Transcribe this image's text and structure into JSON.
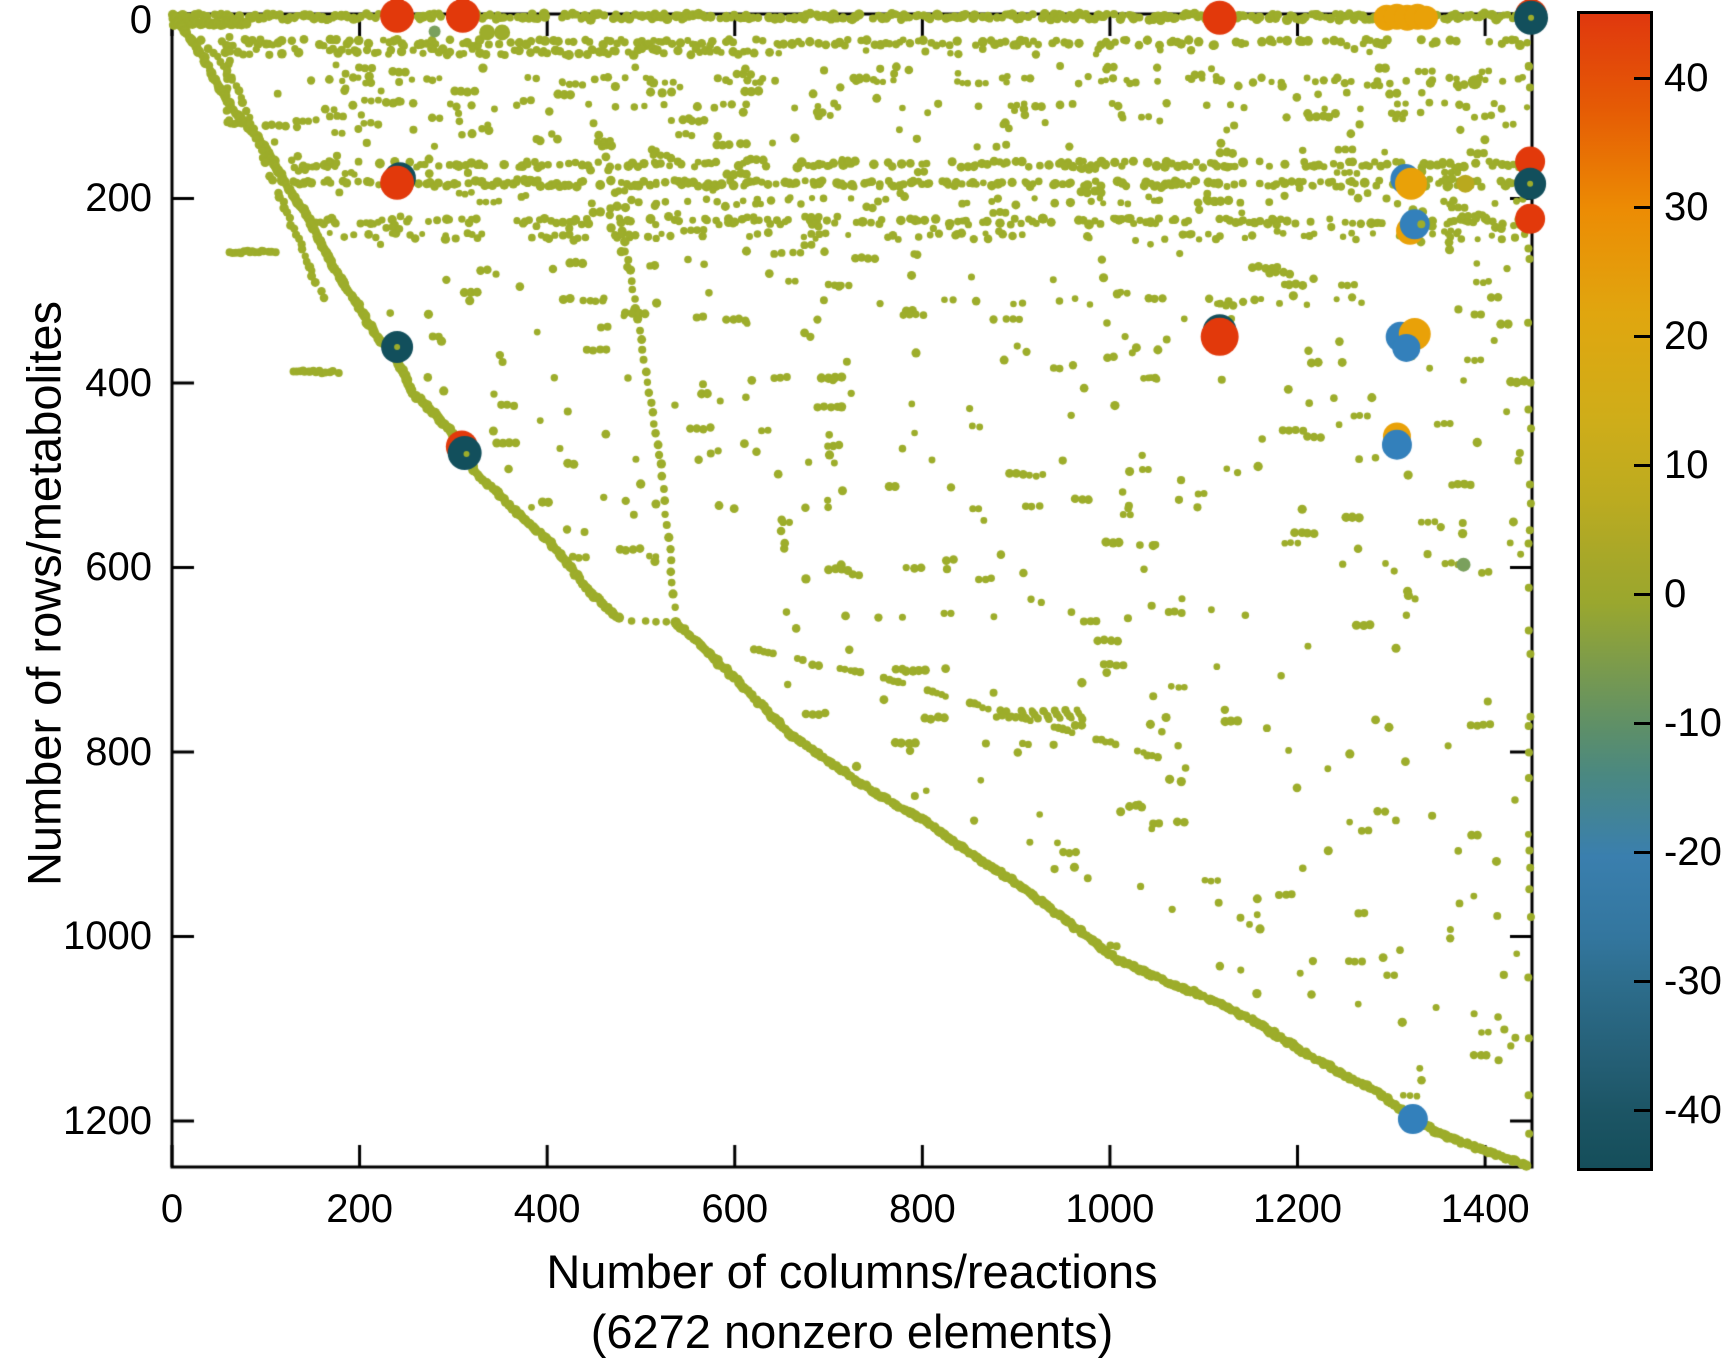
{
  "chart_data": {
    "type": "scatter",
    "subtype": "matrix-sparsity-spy-plot",
    "title": "",
    "xlabel": "Number of columns/reactions",
    "xlabel_note": "(6272 nonzero elements)",
    "ylabel": "Number of rows/metabolites",
    "nonzero_elements": 6272,
    "xlim": [
      0,
      1450
    ],
    "ylim": [
      0,
      1250
    ],
    "y_axis_reversed": true,
    "grid": false,
    "x_ticks": [
      0,
      200,
      400,
      600,
      800,
      1000,
      1200,
      1400
    ],
    "y_ticks": [
      0,
      200,
      400,
      600,
      800,
      1000,
      1200
    ],
    "colorbar": {
      "position": "right",
      "vmax": 45,
      "vmin": -44,
      "ticks": [
        40,
        30,
        20,
        10,
        0,
        -10,
        -20,
        -30,
        -40
      ],
      "gradient_stops": [
        [
          0,
          "#e0380e"
        ],
        [
          8,
          "#e55a05"
        ],
        [
          17,
          "#ec8c04"
        ],
        [
          26,
          "#e0a60f"
        ],
        [
          35,
          "#cfad19"
        ],
        [
          42,
          "#bcab20"
        ],
        [
          48,
          "#a4a72a"
        ],
        [
          51,
          "#9aa72e"
        ],
        [
          56,
          "#7e9c49"
        ],
        [
          62,
          "#5d8f69"
        ],
        [
          66,
          "#4a8881"
        ],
        [
          73,
          "#3a7fae"
        ],
        [
          80,
          "#33769e"
        ],
        [
          84,
          "#2d6d8c"
        ],
        [
          91,
          "#245e74"
        ],
        [
          95,
          "#1c5565"
        ],
        [
          100,
          "#154e5a"
        ]
      ]
    },
    "palette": {
      "olive": "#9dad2b",
      "sage": "#7aa05d",
      "red": "#e2390b",
      "orange": "#e9a108",
      "blue": "#3380bb",
      "teal": "#124f5c",
      "darkyellow": "#b9a91e",
      "frame": "#000000"
    },
    "big_markers": [
      {
        "x": 240,
        "y": 2,
        "r": 17,
        "c": "red"
      },
      {
        "x": 310,
        "y": 2,
        "r": 17,
        "c": "red"
      },
      {
        "x": 1117,
        "y": 4,
        "r": 17,
        "c": "red"
      },
      {
        "x": 1295,
        "y": 4,
        "r": 13,
        "c": "orange"
      },
      {
        "x": 1306,
        "y": 3,
        "r": 13,
        "c": "orange"
      },
      {
        "x": 1317,
        "y": 4,
        "r": 13,
        "c": "orange"
      },
      {
        "x": 1328,
        "y": 3,
        "r": 13,
        "c": "orange"
      },
      {
        "x": 1337,
        "y": 4,
        "r": 12,
        "c": "orange"
      },
      {
        "x": 1449,
        "y": 1,
        "r": 16,
        "c": "red"
      },
      {
        "x": 1449,
        "y": 4,
        "r": 17,
        "c": "teal"
      },
      {
        "x": 1449,
        "y": 4,
        "r": 3,
        "c": "olive"
      },
      {
        "x": 1448,
        "y": 160,
        "r": 15,
        "c": "red"
      },
      {
        "x": 243,
        "y": 178,
        "r": 16,
        "c": "teal"
      },
      {
        "x": 240,
        "y": 183,
        "r": 17,
        "c": "red"
      },
      {
        "x": 1315,
        "y": 179,
        "r": 15,
        "c": "blue"
      },
      {
        "x": 1321,
        "y": 184,
        "r": 16,
        "c": "orange"
      },
      {
        "x": 1379,
        "y": 184,
        "r": 9,
        "c": "darkyellow"
      },
      {
        "x": 1448,
        "y": 184,
        "r": 16,
        "c": "teal"
      },
      {
        "x": 1448,
        "y": 184,
        "r": 3,
        "c": "olive"
      },
      {
        "x": 1448,
        "y": 222,
        "r": 15,
        "c": "red"
      },
      {
        "x": 1320,
        "y": 235,
        "r": 14,
        "c": "orange"
      },
      {
        "x": 1325,
        "y": 228,
        "r": 15,
        "c": "blue"
      },
      {
        "x": 1332,
        "y": 228,
        "r": 4,
        "c": "olive"
      },
      {
        "x": 240,
        "y": 361,
        "r": 16,
        "c": "teal"
      },
      {
        "x": 240,
        "y": 361,
        "r": 3,
        "c": "olive"
      },
      {
        "x": 1117,
        "y": 344,
        "r": 17,
        "c": "teal"
      },
      {
        "x": 1117,
        "y": 350,
        "r": 19,
        "c": "red"
      },
      {
        "x": 1310,
        "y": 350,
        "r": 15,
        "c": "blue"
      },
      {
        "x": 1325,
        "y": 347,
        "r": 16,
        "c": "orange"
      },
      {
        "x": 1316,
        "y": 362,
        "r": 14,
        "c": "blue"
      },
      {
        "x": 309,
        "y": 469,
        "r": 16,
        "c": "red"
      },
      {
        "x": 312,
        "y": 476,
        "r": 17,
        "c": "teal"
      },
      {
        "x": 314,
        "y": 477,
        "r": 3,
        "c": "olive"
      },
      {
        "x": 1306,
        "y": 458,
        "r": 14,
        "c": "orange"
      },
      {
        "x": 1306,
        "y": 467,
        "r": 15,
        "c": "blue"
      },
      {
        "x": 1377,
        "y": 597,
        "r": 7,
        "c": "sage"
      },
      {
        "x": 1389,
        "y": 74,
        "r": 7,
        "c": "olive"
      },
      {
        "x": 280,
        "y": 19,
        "r": 6,
        "c": "sage"
      },
      {
        "x": 336,
        "y": 20,
        "r": 8,
        "c": "olive"
      },
      {
        "x": 352,
        "y": 20,
        "r": 8,
        "c": "olive"
      },
      {
        "x": 1323,
        "y": 1198,
        "r": 15,
        "c": "blue"
      }
    ],
    "pattern": {
      "seed": 1337,
      "diagonal": [
        [
          0,
          0
        ],
        [
          15,
          20
        ],
        [
          32,
          45
        ],
        [
          48,
          75
        ],
        [
          62,
          100
        ],
        [
          80,
          120
        ],
        [
          94,
          137
        ],
        [
          108,
          160
        ],
        [
          122,
          185
        ],
        [
          140,
          212
        ],
        [
          156,
          243
        ],
        [
          172,
          274
        ],
        [
          193,
          307
        ],
        [
          215,
          345
        ],
        [
          236,
          368
        ],
        [
          257,
          411
        ],
        [
          278,
          431
        ],
        [
          295,
          450
        ],
        [
          310,
          473
        ],
        [
          328,
          502
        ],
        [
          347,
          519
        ],
        [
          368,
          541
        ],
        [
          385,
          556
        ],
        [
          410,
          580
        ],
        [
          442,
          622
        ],
        [
          460,
          640
        ],
        [
          478,
          657
        ]
      ],
      "diagonal2": [
        [
          538,
          660
        ],
        [
          600,
          720
        ],
        [
          656,
          778
        ],
        [
          700,
          810
        ],
        [
          750,
          845
        ],
        [
          801,
          874
        ],
        [
          860,
          916
        ],
        [
          911,
          950
        ],
        [
          960,
          988
        ],
        [
          1007,
          1025
        ],
        [
          1055,
          1047
        ],
        [
          1110,
          1069
        ],
        [
          1160,
          1095
        ],
        [
          1205,
          1125
        ],
        [
          1245,
          1148
        ],
        [
          1285,
          1168
        ],
        [
          1323,
          1198
        ],
        [
          1360,
          1218
        ],
        [
          1400,
          1232
        ],
        [
          1447,
          1249
        ]
      ],
      "gap_dots": [
        [
          490,
          658
        ],
        [
          505,
          658
        ],
        [
          516,
          659
        ],
        [
          527,
          659
        ]
      ],
      "inner_staircase": [
        [
          30,
          28
        ],
        [
          60,
          62
        ],
        [
          75,
          95
        ],
        [
          88,
          130
        ],
        [
          102,
          168
        ],
        [
          118,
          205
        ],
        [
          135,
          245
        ],
        [
          150,
          285
        ],
        [
          165,
          312
        ]
      ],
      "arc": [
        [
          450,
          118
        ],
        [
          462,
          155
        ],
        [
          472,
          195
        ],
        [
          480,
          235
        ],
        [
          488,
          278
        ],
        [
          495,
          320
        ],
        [
          502,
          365
        ],
        [
          509,
          410
        ],
        [
          516,
          455
        ],
        [
          522,
          500
        ],
        [
          528,
          555
        ],
        [
          533,
          605
        ],
        [
          537,
          655
        ]
      ],
      "shallow_diagonal": [
        [
          620,
          688
        ],
        [
          780,
          725
        ],
        [
          900,
          762
        ],
        [
          1000,
          790
        ],
        [
          1090,
          820
        ]
      ],
      "sawtooth": [
        [
          905,
          755,
          912,
          766
        ],
        [
          917,
          755,
          924,
          766
        ],
        [
          929,
          755,
          936,
          766
        ],
        [
          941,
          755,
          948,
          766
        ],
        [
          953,
          755,
          960,
          766
        ],
        [
          965,
          755,
          972,
          766
        ]
      ],
      "vertical_runs": [
        {
          "x": 60,
          "y0": 25,
          "y1": 115,
          "step": 5,
          "p": 0.85
        },
        {
          "x": 1447,
          "y0": 8,
          "y1": 1240,
          "step": 22,
          "p": 0.5
        }
      ],
      "horizontal_steps": [
        {
          "y": 10.5,
          "x0": 2,
          "x1": 80,
          "step": 2.5,
          "p": 0.95,
          "r": 5
        },
        {
          "y": 118,
          "x0": 60,
          "x1": 80,
          "step": 3,
          "p": 0.9,
          "r": 4
        },
        {
          "y": 258,
          "x0": 62,
          "x1": 112,
          "step": 3,
          "p": 0.9,
          "r": 4
        },
        {
          "y": 388,
          "x0": 130,
          "x1": 178,
          "step": 3,
          "p": 0.9,
          "r": 4
        }
      ],
      "bands": [
        {
          "y": 3,
          "x0": 2,
          "x1": 1447,
          "step": 3.2,
          "p": 0.72,
          "r": 4.2
        },
        {
          "y": 31,
          "x0": 55,
          "x1": 1447,
          "step": 4.5,
          "p": 0.55,
          "r": 4
        },
        {
          "y": 41,
          "x0": 55,
          "x1": 640,
          "step": 4.5,
          "p": 0.5,
          "r": 4
        },
        {
          "y": 41,
          "x0": 640,
          "x1": 1300,
          "step": 7,
          "p": 0.18,
          "r": 3.5
        },
        {
          "y": 72,
          "x0": 140,
          "x1": 1447,
          "step": 6,
          "p": 0.35,
          "r": 3.5
        },
        {
          "y": 100,
          "x0": 250,
          "x1": 1447,
          "step": 8,
          "p": 0.22,
          "r": 3.5
        },
        {
          "y": 163,
          "x0": 90,
          "x1": 1448,
          "step": 4.5,
          "p": 0.52,
          "r": 4
        },
        {
          "y": 184,
          "x0": 90,
          "x1": 1448,
          "step": 4.2,
          "p": 0.58,
          "r": 4
        },
        {
          "y": 203,
          "x0": 430,
          "x1": 1448,
          "step": 6,
          "p": 0.3,
          "r": 3.5
        },
        {
          "y": 225,
          "x0": 90,
          "x1": 1448,
          "step": 4.5,
          "p": 0.5,
          "r": 4
        },
        {
          "y": 241,
          "x0": 140,
          "x1": 1448,
          "step": 6,
          "p": 0.38,
          "r": 3.5
        },
        {
          "y": 312,
          "x0": 640,
          "x1": 1240,
          "step": 8,
          "p": 0.22,
          "r": 3.5
        }
      ],
      "scatter_regions": [
        {
          "x0": 150,
          "x1": 640,
          "y0": 55,
          "y1": 250,
          "n": 130
        },
        {
          "x0": 640,
          "x1": 1447,
          "y0": 55,
          "y1": 250,
          "n": 170
        },
        {
          "x0": 60,
          "x1": 230,
          "y0": 55,
          "y1": 250,
          "n": 35
        },
        {
          "x0": 230,
          "x1": 700,
          "y0": 250,
          "y1": 600,
          "n": 110
        },
        {
          "x0": 640,
          "x1": 1447,
          "y0": 250,
          "y1": 660,
          "n": 190
        },
        {
          "x0": 600,
          "x1": 1447,
          "y0": 660,
          "y1": 1000,
          "n": 120
        },
        {
          "x0": 1000,
          "x1": 1447,
          "y0": 1000,
          "y1": 1242,
          "n": 55
        }
      ],
      "run_prob": 0.3,
      "diag_margin": 10
    }
  }
}
